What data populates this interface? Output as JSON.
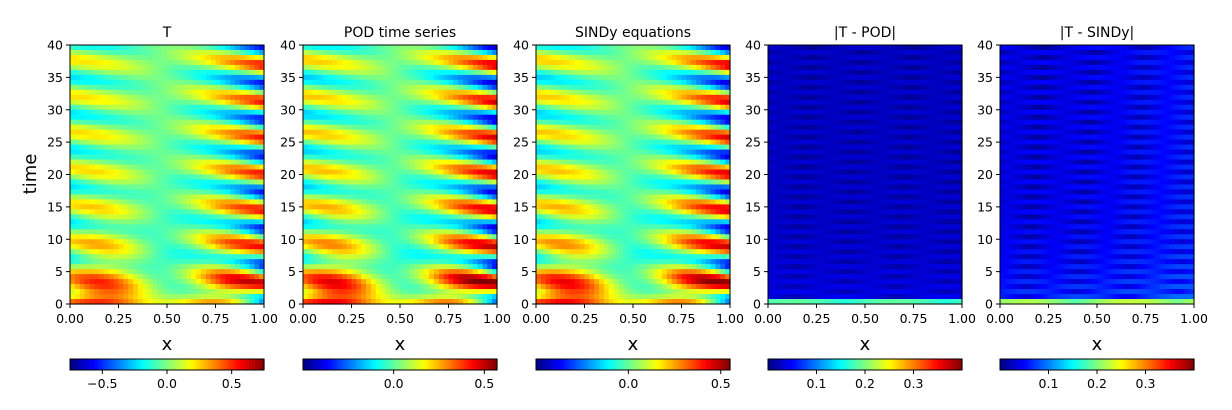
{
  "figure": {
    "ylabel": "time"
  },
  "chart_data": [
    {
      "type": "heatmap",
      "title": "T",
      "xlabel": "x",
      "ylabel": "time",
      "xlim": [
        0,
        1
      ],
      "ylim": [
        0,
        40
      ],
      "xticks": [
        "0.00",
        "0.25",
        "0.50",
        "0.75",
        "1.00"
      ],
      "yticks": [
        "0",
        "5",
        "10",
        "15",
        "20",
        "25",
        "30",
        "35",
        "40"
      ],
      "colormap": "jet",
      "colorbar": {
        "vmin": -0.75,
        "vmax": 0.75,
        "ticks": [
          -0.5,
          0.0,
          0.5
        ],
        "tick_labels": [
          "−0.5",
          "0.0",
          "0.5"
        ]
      }
    },
    {
      "type": "heatmap",
      "title": "POD time series",
      "xlabel": "x",
      "xlim": [
        0,
        1
      ],
      "ylim": [
        0,
        40
      ],
      "xticks": [
        "0.00",
        "0.25",
        "0.50",
        "0.75",
        "1.00"
      ],
      "yticks": [
        "0",
        "5",
        "10",
        "15",
        "20",
        "25",
        "30",
        "35",
        "40"
      ],
      "colormap": "jet",
      "colorbar": {
        "vmin": -0.5,
        "vmax": 0.57,
        "ticks": [
          0.0,
          0.5
        ],
        "tick_labels": [
          "0.0",
          "0.5"
        ]
      }
    },
    {
      "type": "heatmap",
      "title": "SINDy equations",
      "xlabel": "x",
      "xlim": [
        0,
        1
      ],
      "ylim": [
        0,
        40
      ],
      "xticks": [
        "0.00",
        "0.25",
        "0.50",
        "0.75",
        "1.00"
      ],
      "yticks": [
        "0",
        "5",
        "10",
        "15",
        "20",
        "25",
        "30",
        "35",
        "40"
      ],
      "colormap": "jet",
      "colorbar": {
        "vmin": -0.5,
        "vmax": 0.55,
        "ticks": [
          0.0,
          0.5
        ],
        "tick_labels": [
          "0.0",
          "0.5"
        ]
      }
    },
    {
      "type": "heatmap",
      "title": "|T - POD|",
      "xlabel": "x",
      "xlim": [
        0,
        1
      ],
      "ylim": [
        0,
        40
      ],
      "xticks": [
        "0.00",
        "0.25",
        "0.50",
        "0.75",
        "1.00"
      ],
      "yticks": [
        "0",
        "5",
        "10",
        "15",
        "20",
        "25",
        "30",
        "35",
        "40"
      ],
      "colormap": "jet",
      "colorbar": {
        "vmin": 0.0,
        "vmax": 0.4,
        "ticks": [
          0.1,
          0.2,
          0.3
        ],
        "tick_labels": [
          "0.1",
          "0.2",
          "0.3"
        ]
      }
    },
    {
      "type": "heatmap",
      "title": "|T - SINDy|",
      "xlabel": "x",
      "xlim": [
        0,
        1
      ],
      "ylim": [
        0,
        40
      ],
      "xticks": [
        "0.00",
        "0.25",
        "0.50",
        "0.75",
        "1.00"
      ],
      "yticks": [
        "0",
        "5",
        "10",
        "15",
        "20",
        "25",
        "30",
        "35",
        "40"
      ],
      "colormap": "jet",
      "colorbar": {
        "vmin": 0.0,
        "vmax": 0.4,
        "ticks": [
          0.1,
          0.2,
          0.3
        ],
        "tick_labels": [
          "0.1",
          "0.2",
          "0.3"
        ]
      }
    }
  ]
}
